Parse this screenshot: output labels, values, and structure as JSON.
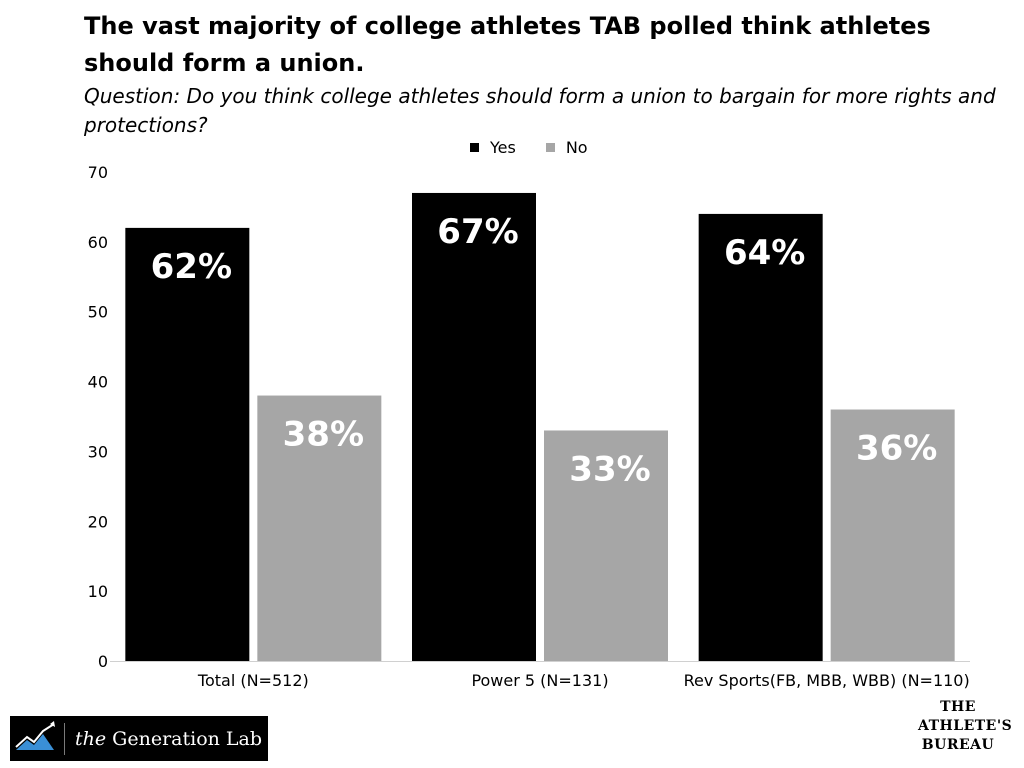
{
  "chart_data": {
    "type": "bar",
    "title": "The vast majority of college athletes TAB polled think athletes should form a union.",
    "subtitle": "Question: Do you think college athletes should form a union to bargain for more rights and protections?",
    "categories": [
      "Total (N=512)",
      "Power 5 (N=131)",
      "Rev Sports(FB, MBB, WBB) (N=110)"
    ],
    "series": [
      {
        "name": "Yes",
        "color": "#000000",
        "values": [
          62,
          67,
          64
        ],
        "labels": [
          "62%",
          "67%",
          "64%"
        ]
      },
      {
        "name": "No",
        "color": "#a6a6a6",
        "values": [
          38,
          33,
          36
        ],
        "labels": [
          "38%",
          "33%",
          "36%"
        ]
      }
    ],
    "ylim": [
      0,
      70
    ],
    "yticks": [
      "0",
      "10",
      "20",
      "30",
      "40",
      "50",
      "60",
      "70"
    ],
    "xlabel": "",
    "ylabel": "",
    "grid": false,
    "legend_position": "top"
  },
  "footer": {
    "logo_the": "the",
    "logo_name": "Generation Lab",
    "logo_icon": "mountain-chart-icon",
    "bureau_lines": [
      "THE",
      "ATHLETE'S",
      "BUREAU"
    ]
  }
}
